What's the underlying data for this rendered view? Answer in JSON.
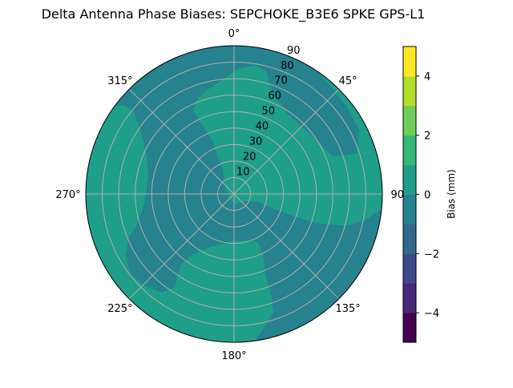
{
  "chart_data": {
    "type": "contour",
    "projection": "polar",
    "title": "Delta Antenna Phase Biases: SEPCHOKE_B3E6   SPKE GPS-L1",
    "angular_ticks": [
      "0°",
      "45°",
      "90°",
      "135°",
      "180°",
      "225°",
      "270°",
      "315°"
    ],
    "radial_ticks": [
      "10",
      "20",
      "30",
      "40",
      "50",
      "60",
      "70",
      "80",
      "90"
    ],
    "radial_range": [
      0,
      90
    ],
    "grid": true,
    "colorbar": {
      "label": "Bias (mm)",
      "range": [
        -5,
        5
      ],
      "levels": [
        -5,
        -4,
        -3,
        -2,
        -1,
        0,
        1,
        2,
        3,
        4,
        5
      ],
      "tick_values": [
        -4,
        -2,
        0,
        2,
        4
      ],
      "tick_labels": [
        "−4",
        "−2",
        "0",
        "2",
        "4"
      ],
      "colors": [
        "#440154",
        "#482878",
        "#3e4989",
        "#31688e",
        "#26828e",
        "#1f9e89",
        "#35b779",
        "#6ece58",
        "#b5de2b",
        "#fde725"
      ],
      "colormap": "viridis"
    },
    "regions": [
      {
        "level_range": [
          0,
          1
        ],
        "color": "#1f9e89",
        "description_of_value": "0 to 1 mm"
      },
      {
        "level_range": [
          -1,
          0
        ],
        "color": "#26828e",
        "description_of_value": "-1 to 0 mm"
      }
    ]
  }
}
